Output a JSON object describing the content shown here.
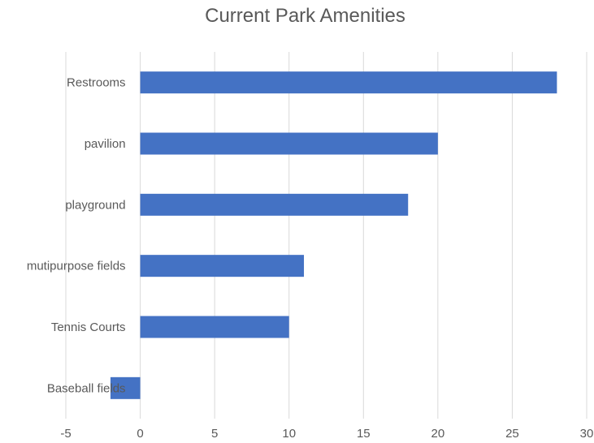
{
  "chart_data": {
    "type": "bar",
    "orientation": "horizontal",
    "title": "Current Park Amenities",
    "xlabel": "",
    "ylabel": "",
    "categories": [
      "Restrooms",
      "pavilion",
      "playground",
      "mutipurpose fields",
      "Tennis Courts",
      "Baseball fields"
    ],
    "values": [
      28,
      20,
      18,
      11,
      10,
      -2
    ],
    "xlim": [
      -5,
      30
    ],
    "xticks": [
      "-5",
      "0",
      "5",
      "10",
      "15",
      "20",
      "25",
      "30"
    ],
    "gridlines": "vertical",
    "legend": "none",
    "bar_color": "#4472C4",
    "grid_color": "#D9D9D9",
    "text_color": "#595959"
  }
}
